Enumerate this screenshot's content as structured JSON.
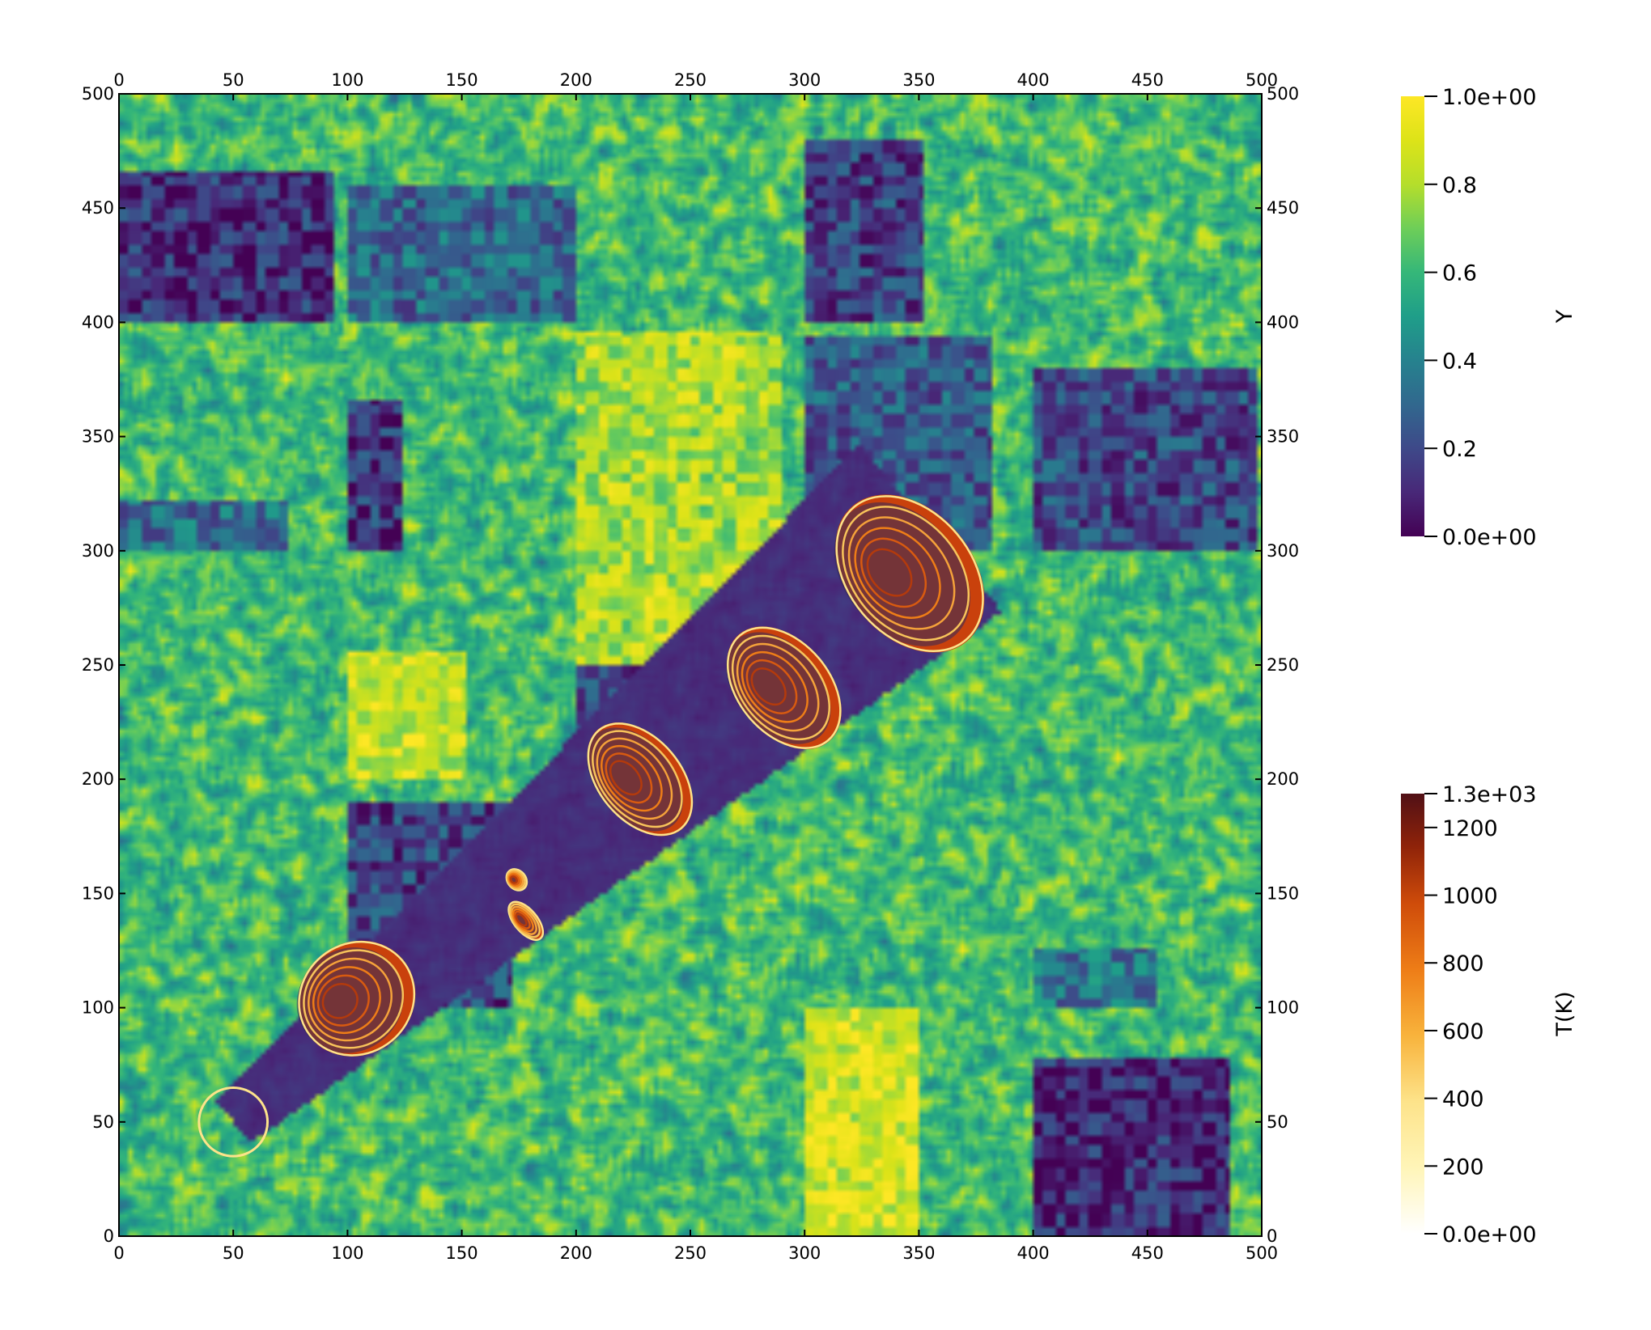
{
  "chart_data": {
    "type": "heatmap",
    "title": "",
    "x_axis": {
      "range": [
        0,
        500
      ],
      "ticks": [
        0,
        50,
        100,
        150,
        200,
        250,
        300,
        350,
        400,
        450,
        500
      ],
      "labels": [
        "0",
        "50",
        "100",
        "150",
        "200",
        "250",
        "300",
        "350",
        "400",
        "450",
        "500"
      ]
    },
    "y_axis": {
      "range": [
        0,
        500
      ],
      "ticks": [
        0,
        50,
        100,
        150,
        200,
        250,
        300,
        350,
        400,
        450,
        500
      ],
      "labels": [
        "0",
        "50",
        "100",
        "150",
        "200",
        "250",
        "300",
        "350",
        "400",
        "450",
        "500"
      ]
    },
    "field": {
      "name": "Y",
      "colormap": "viridis",
      "range": [
        0,
        1
      ],
      "background_mean": 0.62,
      "low_regions": [
        {
          "x": [
            0,
            93
          ],
          "y": [
            400,
            465
          ],
          "value": 0.12
        },
        {
          "x": [
            100,
            199
          ],
          "y": [
            400,
            460
          ],
          "value": 0.3
        },
        {
          "x": [
            300,
            351
          ],
          "y": [
            400,
            480
          ],
          "value": 0.18
        },
        {
          "x": [
            100,
            124
          ],
          "y": [
            300,
            365
          ],
          "value": 0.15
        },
        {
          "x": [
            0,
            73
          ],
          "y": [
            300,
            322
          ],
          "value": 0.32
        },
        {
          "x": [
            300,
            381
          ],
          "y": [
            300,
            393
          ],
          "value": 0.25
        },
        {
          "x": [
            400,
            497
          ],
          "y": [
            300,
            380
          ],
          "value": 0.2
        },
        {
          "x": [
            200,
            252
          ],
          "y": [
            200,
            253
          ],
          "value": 0.18
        },
        {
          "x": [
            100,
            171
          ],
          "y": [
            100,
            189
          ],
          "value": 0.18
        },
        {
          "x": [
            400,
            453
          ],
          "y": [
            100,
            125
          ],
          "value": 0.35
        },
        {
          "x": [
            400,
            486
          ],
          "y": [
            0,
            77
          ],
          "value": 0.1
        }
      ],
      "high_regions": [
        {
          "x": [
            200,
            290
          ],
          "y": [
            250,
            395
          ],
          "value": 0.8
        },
        {
          "x": [
            100,
            151
          ],
          "y": [
            200,
            255
          ],
          "value": 0.85
        },
        {
          "x": [
            300,
            350
          ],
          "y": [
            0,
            100
          ],
          "value": 0.88
        }
      ],
      "burn_path": {
        "start": [
          50,
          50
        ],
        "end": [
          355,
          310
        ],
        "width_start": 12,
        "width_end": 48,
        "value": 0.12
      }
    },
    "temperature": {
      "name": "T(K)",
      "colormap": "YlOrRd",
      "range": [
        0,
        1300
      ],
      "fires": [
        {
          "name": "ignition",
          "x": 50,
          "y": 50,
          "rx": 15,
          "ry": 15,
          "peak": 300
        },
        {
          "name": "fire-1",
          "x": 104,
          "y": 104,
          "rx": 26,
          "ry": 24,
          "peak": 1000
        },
        {
          "name": "fire-2a",
          "x": 174,
          "y": 156,
          "rx": 4,
          "ry": 5,
          "peak": 700
        },
        {
          "name": "fire-2b",
          "x": 178,
          "y": 138,
          "rx": 5,
          "ry": 10,
          "peak": 700
        },
        {
          "name": "fire-3",
          "x": 228,
          "y": 200,
          "rx": 18,
          "ry": 28,
          "peak": 1050
        },
        {
          "name": "fire-4",
          "x": 291,
          "y": 240,
          "rx": 20,
          "ry": 30,
          "peak": 1050
        },
        {
          "name": "fire-5",
          "x": 346,
          "y": 290,
          "rx": 27,
          "ry": 38,
          "peak": 1100
        }
      ]
    },
    "colorbars": [
      {
        "name": "y-colorbar",
        "title": "Y",
        "labels": [
          "1.0e+00",
          "0.8",
          "0.6",
          "0.4",
          "0.2",
          "0.0e+00"
        ],
        "values": [
          1.0,
          0.8,
          0.6,
          0.4,
          0.2,
          0.0
        ]
      },
      {
        "name": "temperature-colorbar",
        "title": "T(K)",
        "labels": [
          "1.3e+03",
          "1200",
          "1000",
          "800",
          "600",
          "400",
          "200",
          "0.0e+00"
        ],
        "values": [
          1300,
          1200,
          1000,
          800,
          600,
          400,
          200,
          0
        ]
      }
    ],
    "grid": false,
    "legend": "right"
  }
}
